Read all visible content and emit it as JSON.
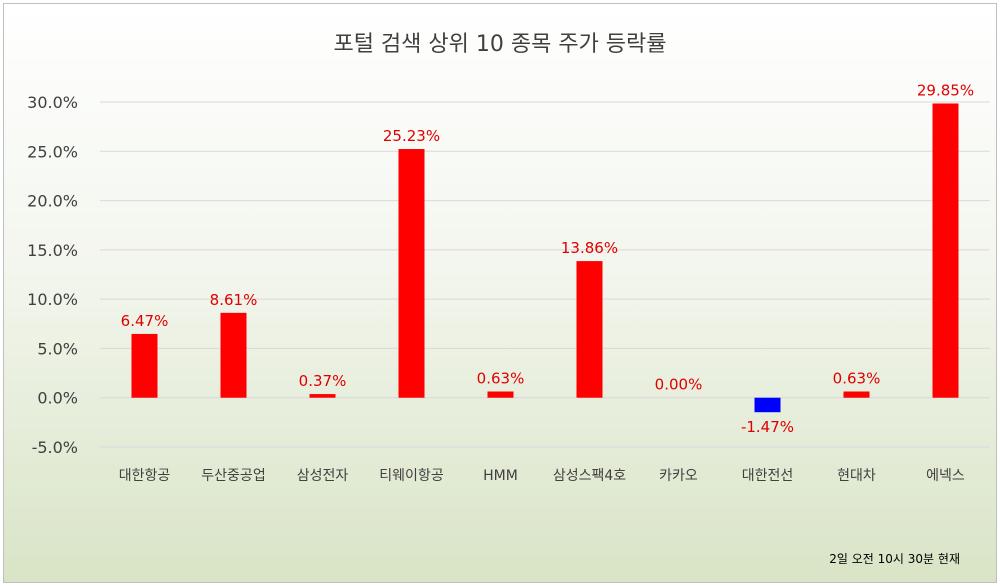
{
  "chart_data": {
    "type": "bar",
    "title": "포털 검색 상위 10 종목 주가 등락률",
    "categories": [
      "대한항공",
      "두산중공업",
      "삼성전자",
      "티웨이항공",
      "HMM",
      "삼성스팩4호",
      "카카오",
      "대한전선",
      "현대차",
      "에넥스"
    ],
    "values": [
      6.47,
      8.61,
      0.37,
      25.23,
      0.63,
      13.86,
      0.0,
      -1.47,
      0.63,
      29.85
    ],
    "data_labels": [
      "6.47%",
      "8.61%",
      "0.37%",
      "25.23%",
      "0.63%",
      "13.86%",
      "0.00%",
      "-1.47%",
      "0.63%",
      "29.85%"
    ],
    "y_ticks": [
      -5,
      0,
      5,
      10,
      15,
      20,
      25,
      30
    ],
    "y_tick_labels": [
      "-5.0%",
      "0.0%",
      "5.0%",
      "10.0%",
      "15.0%",
      "20.0%",
      "25.0%",
      "30.0%"
    ],
    "ylim": [
      -5,
      30
    ],
    "grid": true,
    "colors": {
      "positive": "#ff0000",
      "negative": "#0000ff",
      "label": "#e00000",
      "grid": "#d9d9d9"
    }
  },
  "footnote": "2일 오전 10시 30분 현재"
}
